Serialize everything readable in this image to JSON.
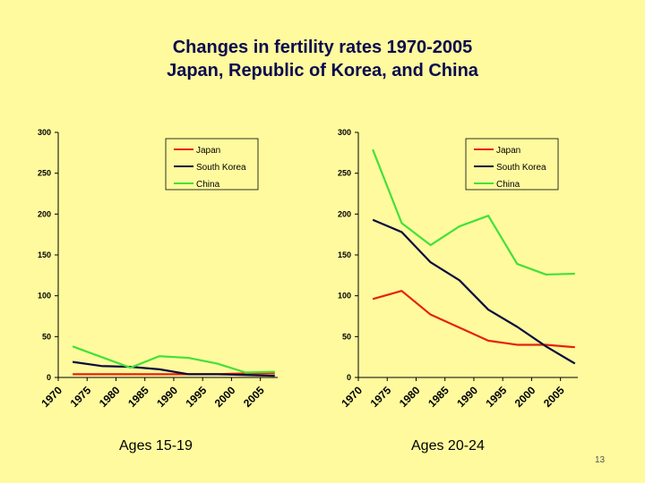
{
  "title_line1": "Changes in fertility rates 1970-2005",
  "title_line2": "Japan, Republic of Korea, and China",
  "page_number": "13",
  "colors": {
    "background": "#FFFA9E",
    "title": "#0B0B4F",
    "Japan": "#E8200C",
    "South Korea": "#0A0A40",
    "China": "#44E03A"
  },
  "chart_data": [
    {
      "type": "line",
      "caption": "Ages 15-19",
      "x_ticks": [
        "1970",
        "1975",
        "1980",
        "1985",
        "1990",
        "1995",
        "2000",
        "2005"
      ],
      "x": [
        1972.5,
        1977.5,
        1982.5,
        1987.5,
        1992.5,
        1997.5,
        2002.5,
        2007.5
      ],
      "xlim": [
        1970,
        2008
      ],
      "ylim": [
        0,
        300
      ],
      "y_ticks": [
        0,
        50,
        100,
        150,
        200,
        250,
        300
      ],
      "grid": false,
      "legend_position": "top-right",
      "series": [
        {
          "name": "Japan",
          "values": [
            4,
            4,
            4,
            4,
            4,
            4,
            5,
            5
          ]
        },
        {
          "name": "South Korea",
          "values": [
            19,
            14,
            13,
            10,
            4,
            4,
            3,
            2
          ]
        },
        {
          "name": "China",
          "values": [
            38,
            25,
            12,
            26,
            24,
            17,
            6,
            7
          ]
        }
      ]
    },
    {
      "type": "line",
      "caption": "Ages 20-24",
      "x_ticks": [
        "1970",
        "1975",
        "1980",
        "1985",
        "1990",
        "1995",
        "2000",
        "2005"
      ],
      "x": [
        1972.5,
        1977.5,
        1982.5,
        1987.5,
        1992.5,
        1997.5,
        2002.5,
        2007.5
      ],
      "xlim": [
        1970,
        2008
      ],
      "ylim": [
        0,
        300
      ],
      "y_ticks": [
        0,
        50,
        100,
        150,
        200,
        250,
        300
      ],
      "grid": false,
      "legend_position": "top-right",
      "series": [
        {
          "name": "Japan",
          "values": [
            96,
            106,
            77,
            61,
            45,
            40,
            40,
            37
          ]
        },
        {
          "name": "South Korea",
          "values": [
            193,
            178,
            141,
            119,
            83,
            62,
            38,
            17
          ]
        },
        {
          "name": "China",
          "values": [
            279,
            189,
            162,
            185,
            198,
            139,
            126,
            127
          ]
        }
      ]
    }
  ]
}
